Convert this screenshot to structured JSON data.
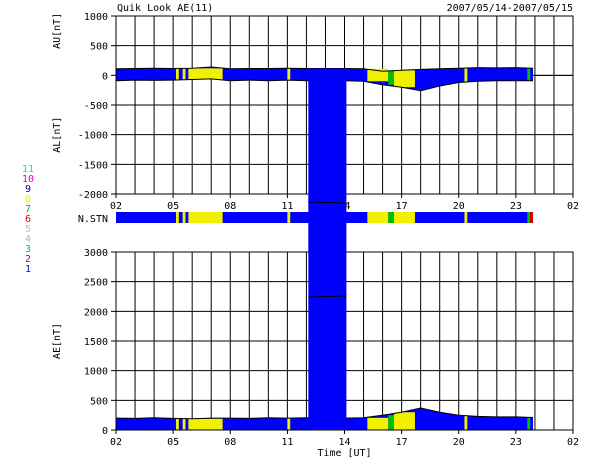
{
  "header": {
    "title": "Quik Look AE(11)",
    "date_range": "2007/05/14-2007/05/15"
  },
  "chart_data": [
    {
      "type": "area",
      "name": "AU/AL panel",
      "ylabel_top": "AU[nT]",
      "ylabel_bottom": "AL[nT]",
      "ylim": [
        -2000,
        1000
      ],
      "yticks": [
        "1000",
        "500",
        "0",
        "-500",
        "-1000",
        "-1500",
        "-2000"
      ],
      "xlim_hours": [
        2,
        26
      ],
      "xticks": [
        "02",
        "05",
        "08",
        "11",
        "14",
        "17",
        "20",
        "23",
        "02"
      ],
      "series": [
        {
          "key": "AU",
          "x": [
            2,
            3,
            4,
            5,
            6,
            7,
            8,
            9,
            10,
            11,
            12,
            13,
            14,
            15,
            16,
            17,
            18,
            19,
            20,
            21,
            22,
            23,
            23.9
          ],
          "values": [
            110,
            115,
            120,
            115,
            118,
            140,
            110,
            115,
            115,
            118,
            115,
            115,
            115,
            110,
            70,
            85,
            100,
            110,
            120,
            130,
            125,
            130,
            120
          ]
        },
        {
          "key": "AL",
          "x": [
            2,
            3,
            4,
            5,
            6,
            7,
            8,
            9,
            10,
            11,
            12,
            13,
            14,
            15,
            16,
            17,
            18,
            19,
            20,
            21,
            22,
            23,
            23.9
          ],
          "values": [
            -90,
            -80,
            -85,
            -80,
            -70,
            -60,
            -90,
            -80,
            -90,
            -80,
            -90,
            -90,
            -90,
            -100,
            -160,
            -200,
            -260,
            -180,
            -120,
            -100,
            -90,
            -90,
            -90
          ]
        }
      ],
      "spike": {
        "x_start": 12.1,
        "x_end": 14.1,
        "value": -2000
      }
    },
    {
      "type": "area",
      "name": "AE panel",
      "ylabel": "AE[nT]",
      "ylim": [
        0,
        3000
      ],
      "yticks": [
        "3000",
        "2500",
        "2000",
        "1500",
        "1000",
        "500",
        "0"
      ],
      "xlim_hours": [
        2,
        26
      ],
      "xticks": [
        "02",
        "05",
        "08",
        "11",
        "14",
        "17",
        "20",
        "23",
        "02"
      ],
      "xlabel": "Time [UT]",
      "series": [
        {
          "key": "AE",
          "x": [
            2,
            3,
            4,
            5,
            6,
            7,
            8,
            9,
            10,
            11,
            12,
            13,
            14,
            15,
            16,
            17,
            18,
            19,
            20,
            21,
            22,
            23,
            23.9
          ],
          "values": [
            200,
            195,
            205,
            195,
            190,
            200,
            200,
            195,
            205,
            200,
            205,
            200,
            200,
            205,
            250,
            300,
            370,
            300,
            250,
            230,
            220,
            220,
            210
          ]
        }
      ],
      "spike": {
        "x_start": 12.1,
        "x_end": 14.1,
        "value": 3000
      }
    }
  ],
  "station_bar": {
    "label": "N.STN",
    "levels": [
      "11",
      "10",
      "9",
      "8",
      "7",
      "6",
      "5",
      "4",
      "3",
      "2",
      "1"
    ],
    "level_colors": [
      "#00e0e0",
      "#e000e0",
      "#0000c0",
      "#f0f000",
      "#00c000",
      "#e00000",
      "#c0c0c0",
      "#b0b0b0",
      "#00b0b0",
      "#a000a0",
      "#0000ff"
    ],
    "base_color": "#0000ff",
    "segments": [
      {
        "start": 5.15,
        "end": 5.3,
        "color": "#f0f000"
      },
      {
        "start": 5.5,
        "end": 5.65,
        "color": "#f0f000"
      },
      {
        "start": 5.8,
        "end": 7.6,
        "color": "#f0f000"
      },
      {
        "start": 11.0,
        "end": 11.15,
        "color": "#f0f000"
      },
      {
        "start": 12.3,
        "end": 12.55,
        "color": "#f0f000"
      },
      {
        "start": 15.2,
        "end": 16.3,
        "color": "#f0f000"
      },
      {
        "start": 16.3,
        "end": 16.6,
        "color": "#00c000"
      },
      {
        "start": 16.6,
        "end": 17.7,
        "color": "#f0f000"
      },
      {
        "start": 20.3,
        "end": 20.45,
        "color": "#f0f000"
      },
      {
        "start": 23.6,
        "end": 23.75,
        "color": "#00c000"
      },
      {
        "start": 23.75,
        "end": 23.9,
        "color": "#e00000"
      }
    ]
  }
}
